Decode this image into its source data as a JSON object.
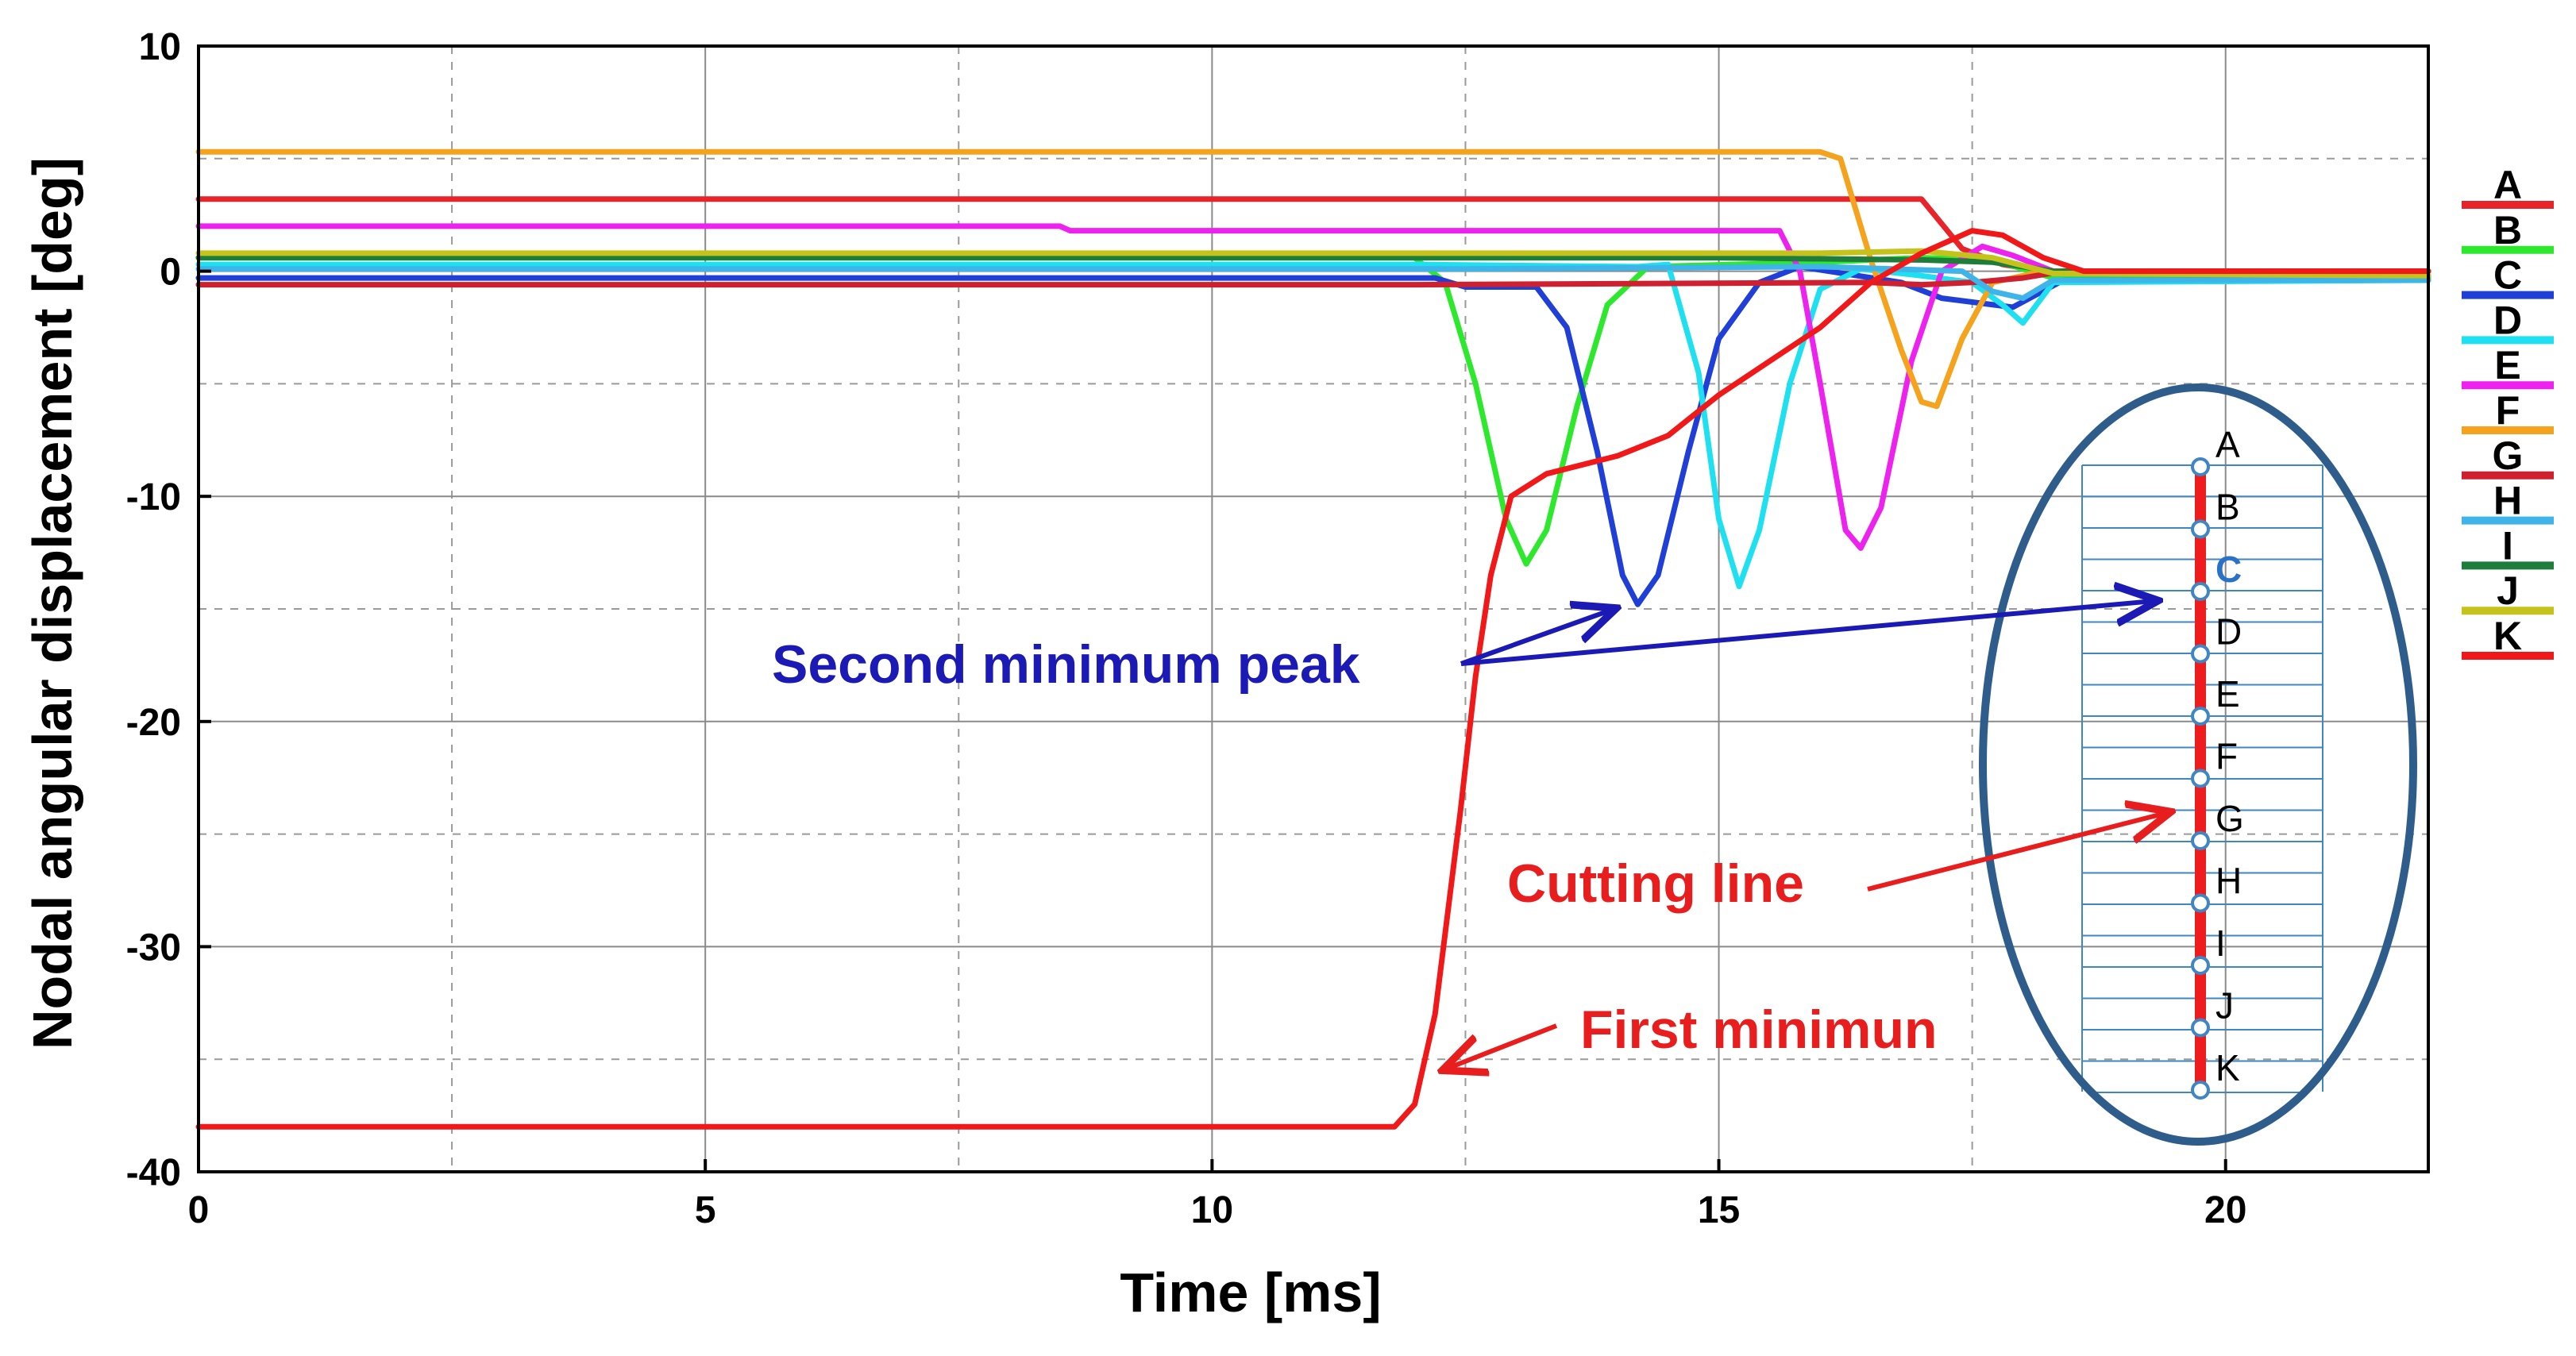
{
  "chart_data": {
    "type": "line",
    "title": "",
    "xlabel": "Time [ms]",
    "ylabel": "Nodal angular displacement [deg]",
    "xlim": [
      0,
      22
    ],
    "ylim": [
      -40,
      10
    ],
    "x_ticks": [
      0,
      5,
      10,
      15,
      20
    ],
    "y_ticks": [
      10,
      0,
      -10,
      -20,
      -30,
      -40
    ],
    "legend_position": "right",
    "series": [
      {
        "name": "A",
        "color": "#e8242b",
        "points": [
          [
            0,
            3.2
          ],
          [
            17.0,
            3.2
          ],
          [
            17.4,
            1.0
          ],
          [
            17.8,
            0.3
          ],
          [
            18.2,
            0.0
          ],
          [
            22,
            0.0
          ]
        ]
      },
      {
        "name": "B",
        "color": "#2ee82e",
        "points": [
          [
            0,
            0.6
          ],
          [
            12.0,
            0.6
          ],
          [
            12.3,
            -0.5
          ],
          [
            12.6,
            -5.0
          ],
          [
            12.9,
            -11.0
          ],
          [
            13.1,
            -13.0
          ],
          [
            13.3,
            -11.5
          ],
          [
            13.6,
            -6.0
          ],
          [
            13.9,
            -1.5
          ],
          [
            14.3,
            0.2
          ],
          [
            16.0,
            0.4
          ],
          [
            17.0,
            0.6
          ],
          [
            17.7,
            0.5
          ],
          [
            18.3,
            -0.3
          ],
          [
            22,
            -0.3
          ]
        ]
      },
      {
        "name": "C",
        "color": "#1f3fd6",
        "points": [
          [
            0,
            -0.3
          ],
          [
            12.2,
            -0.3
          ],
          [
            12.5,
            -0.7
          ],
          [
            13.2,
            -0.7
          ],
          [
            13.5,
            -2.5
          ],
          [
            13.8,
            -8.0
          ],
          [
            14.05,
            -13.5
          ],
          [
            14.2,
            -14.8
          ],
          [
            14.4,
            -13.5
          ],
          [
            14.7,
            -8.0
          ],
          [
            15.0,
            -3.0
          ],
          [
            15.4,
            -0.5
          ],
          [
            15.8,
            0.2
          ],
          [
            16.8,
            -0.5
          ],
          [
            17.2,
            -1.2
          ],
          [
            17.9,
            -1.6
          ],
          [
            18.4,
            -0.4
          ],
          [
            22,
            -0.4
          ]
        ]
      },
      {
        "name": "D",
        "color": "#1ee0f0",
        "points": [
          [
            0,
            0.3
          ],
          [
            12.0,
            0.3
          ],
          [
            14.2,
            0.2
          ],
          [
            14.5,
            0.3
          ],
          [
            14.8,
            -4.5
          ],
          [
            15.0,
            -11.0
          ],
          [
            15.2,
            -14.0
          ],
          [
            15.4,
            -11.5
          ],
          [
            15.7,
            -5.0
          ],
          [
            16.0,
            -0.8
          ],
          [
            16.4,
            0.1
          ],
          [
            17.0,
            -0.2
          ],
          [
            17.5,
            -0.5
          ],
          [
            17.8,
            -1.5
          ],
          [
            18.0,
            -2.3
          ],
          [
            18.3,
            -0.5
          ],
          [
            22,
            -0.4
          ]
        ]
      },
      {
        "name": "E",
        "color": "#ee22ee",
        "points": [
          [
            0,
            2.0
          ],
          [
            8.5,
            2.0
          ],
          [
            8.6,
            1.8
          ],
          [
            15.6,
            1.8
          ],
          [
            15.8,
            0.0
          ],
          [
            16.0,
            -5.0
          ],
          [
            16.25,
            -11.5
          ],
          [
            16.4,
            -12.3
          ],
          [
            16.6,
            -10.5
          ],
          [
            16.9,
            -4.0
          ],
          [
            17.2,
            0.0
          ],
          [
            17.6,
            1.1
          ],
          [
            17.9,
            0.7
          ],
          [
            18.3,
            0.0
          ],
          [
            22,
            0.0
          ]
        ]
      },
      {
        "name": "F",
        "color": "#f5a21c",
        "points": [
          [
            0,
            5.3
          ],
          [
            16.0,
            5.3
          ],
          [
            16.2,
            5.0
          ],
          [
            16.5,
            0.5
          ],
          [
            16.8,
            -3.5
          ],
          [
            17.0,
            -5.8
          ],
          [
            17.15,
            -6.0
          ],
          [
            17.4,
            -3.0
          ],
          [
            17.7,
            -0.5
          ],
          [
            18.2,
            0.0
          ],
          [
            22,
            0.0
          ]
        ]
      },
      {
        "name": "G",
        "color": "#cf2030",
        "points": [
          [
            0,
            -0.6
          ],
          [
            12.0,
            -0.6
          ],
          [
            16.5,
            -0.5
          ],
          [
            17.0,
            -0.6
          ],
          [
            17.5,
            -0.5
          ],
          [
            18.0,
            -0.3
          ],
          [
            18.4,
            0.0
          ],
          [
            22,
            0.0
          ]
        ]
      },
      {
        "name": "H",
        "color": "#3fb4e8",
        "points": [
          [
            0,
            0.1
          ],
          [
            12.5,
            0.1
          ],
          [
            16.0,
            0.2
          ],
          [
            17.4,
            0.0
          ],
          [
            17.7,
            -0.9
          ],
          [
            18.0,
            -1.2
          ],
          [
            18.3,
            -0.4
          ],
          [
            22,
            -0.4
          ]
        ]
      },
      {
        "name": "I",
        "color": "#1e7d3a",
        "points": [
          [
            0,
            0.6
          ],
          [
            15.0,
            0.6
          ],
          [
            17.0,
            0.5
          ],
          [
            17.7,
            0.4
          ],
          [
            18.3,
            0.0
          ],
          [
            22,
            -0.2
          ]
        ]
      },
      {
        "name": "J",
        "color": "#c6c21c",
        "points": [
          [
            0,
            0.8
          ],
          [
            16.0,
            0.8
          ],
          [
            17.0,
            0.9
          ],
          [
            17.7,
            0.6
          ],
          [
            18.3,
            -0.1
          ],
          [
            22,
            -0.2
          ]
        ]
      },
      {
        "name": "K",
        "color": "#f01818",
        "points": [
          [
            0,
            -38.0
          ],
          [
            11.8,
            -38.0
          ],
          [
            12.0,
            -37.0
          ],
          [
            12.2,
            -33.0
          ],
          [
            12.45,
            -24.0
          ],
          [
            12.6,
            -18.0
          ],
          [
            12.75,
            -13.5
          ],
          [
            12.95,
            -10.0
          ],
          [
            13.3,
            -9.0
          ],
          [
            14.0,
            -8.2
          ],
          [
            14.5,
            -7.3
          ],
          [
            15.0,
            -5.5
          ],
          [
            15.5,
            -4.0
          ],
          [
            16.0,
            -2.5
          ],
          [
            16.5,
            -0.5
          ],
          [
            17.0,
            0.8
          ],
          [
            17.5,
            1.8
          ],
          [
            17.8,
            1.6
          ],
          [
            18.2,
            0.6
          ],
          [
            18.6,
            0.0
          ],
          [
            22,
            0.0
          ]
        ]
      }
    ],
    "annotations": [
      {
        "text": "Second minimum peak",
        "color": "#1c1ab5"
      },
      {
        "text": "Cutting line",
        "color": "#e81d1d"
      },
      {
        "text": "First minimun",
        "color": "#e81d1d"
      }
    ],
    "inset": {
      "nodes": [
        "A",
        "B",
        "C",
        "D",
        "E",
        "F",
        "G",
        "H",
        "I",
        "J",
        "K"
      ],
      "highlighted_node": "C",
      "highlight_color": "#2a72c8",
      "cutting_line_color": "#ee1c1c",
      "ellipse_color": "#2e5d8c",
      "grid_color": "#3e86c4"
    }
  }
}
